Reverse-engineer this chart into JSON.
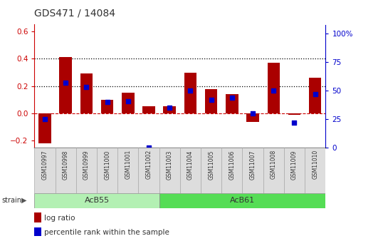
{
  "title": "GDS471 / 14084",
  "categories": [
    "GSM10997",
    "GSM10998",
    "GSM10999",
    "GSM11000",
    "GSM11001",
    "GSM11002",
    "GSM11003",
    "GSM11004",
    "GSM11005",
    "GSM11006",
    "GSM11007",
    "GSM11008",
    "GSM11009",
    "GSM11010"
  ],
  "log_ratio": [
    -0.22,
    0.41,
    0.29,
    0.1,
    0.15,
    0.05,
    0.05,
    0.3,
    0.18,
    0.14,
    -0.06,
    0.37,
    -0.01,
    0.26
  ],
  "percentile_rank": [
    25,
    57,
    53,
    40,
    41,
    0,
    35,
    50,
    42,
    44,
    30,
    50,
    22,
    47
  ],
  "bar_color": "#aa0000",
  "dot_color": "#0000cc",
  "ylim_left": [
    -0.25,
    0.65
  ],
  "ylim_right": [
    0,
    108
  ],
  "yticks_left": [
    -0.2,
    0.0,
    0.2,
    0.4,
    0.6
  ],
  "yticks_right": [
    0,
    25,
    50,
    75,
    100
  ],
  "ytick_labels_right": [
    "0",
    "25",
    "50",
    "75",
    "100%"
  ],
  "group1_label": "AcB55",
  "group2_label": "AcB61",
  "group1_count": 6,
  "strain_label": "strain",
  "legend_bar_label": "log ratio",
  "legend_dot_label": "percentile rank within the sample",
  "background_color": "#ffffff",
  "group_bar_color1": "#b3f0b3",
  "group_bar_color2": "#55dd55",
  "tick_label_color_left": "#cc0000",
  "tick_label_color_right": "#0000cc",
  "sample_box_color": "#dddddd",
  "sample_box_edge": "#aaaaaa"
}
